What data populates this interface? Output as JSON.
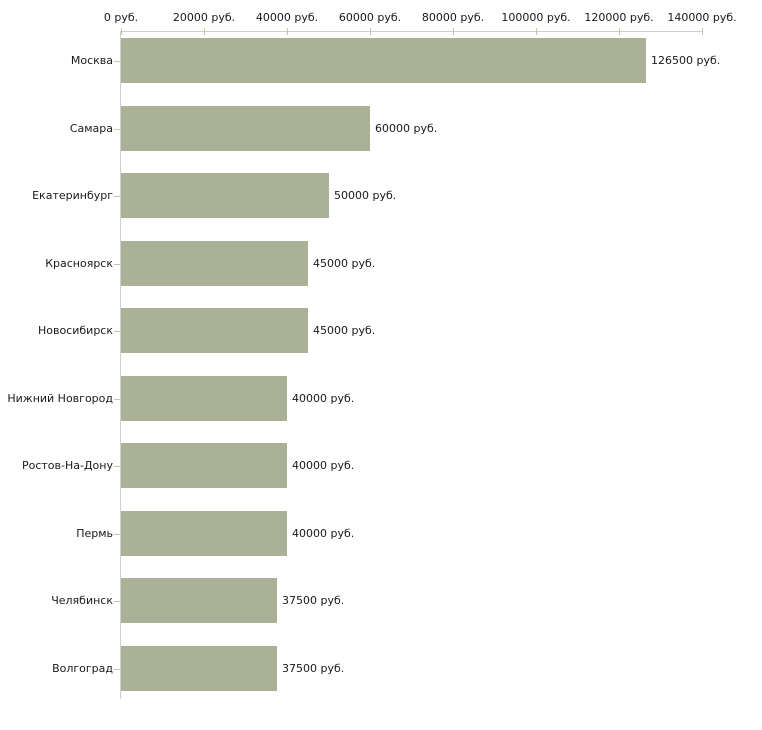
{
  "chart_data": {
    "type": "bar",
    "orientation": "horizontal",
    "title": "",
    "categories": [
      "Москва",
      "Самара",
      "Екатеринбург",
      "Красноярск",
      "Новосибирск",
      "Нижний Новгород",
      "Ростов-На-Дону",
      "Пермь",
      "Челябинск",
      "Волгоград"
    ],
    "values": [
      126500,
      60000,
      50000,
      45000,
      45000,
      40000,
      40000,
      40000,
      37500,
      37500
    ],
    "value_labels": [
      "126500 руб.",
      "60000 руб.",
      "50000 руб.",
      "45000 руб.",
      "45000 руб.",
      "40000 руб.",
      "40000 руб.",
      "40000 руб.",
      "37500 руб.",
      "37500 руб."
    ],
    "x_axis": {
      "position": "top",
      "unit": "руб.",
      "min": 0,
      "max": 140000,
      "ticks": [
        0,
        20000,
        40000,
        60000,
        80000,
        100000,
        120000,
        140000
      ],
      "tick_labels": [
        "0 руб.",
        "20000 руб.",
        "40000 руб.",
        "60000 руб.",
        "80000 руб.",
        "100000 руб.",
        "120000 руб.",
        "140000 руб."
      ]
    },
    "legend": null,
    "grid": false,
    "colors": {
      "bar": "#abb196",
      "axis_line": "#cfcfcf",
      "tick_mark": "#c8c5a3",
      "text": "#1a1a1a",
      "background": "#ffffff"
    }
  }
}
